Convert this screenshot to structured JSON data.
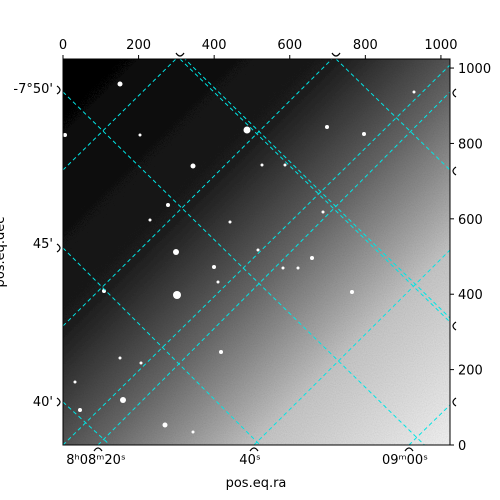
{
  "chart_data": {
    "type": "heatmap",
    "title": "",
    "xlabel": "pos.eq.ra",
    "ylabel": "pos.eq.dec",
    "pixel_axes": {
      "x_range": [
        0,
        1024
      ],
      "y_range": [
        0,
        1024
      ],
      "top_ticks": [
        0,
        200,
        400,
        600,
        800,
        1000
      ],
      "right_ticks": [
        0,
        200,
        400,
        600,
        800,
        1000
      ]
    },
    "world_ticks": {
      "ra": [
        {
          "label": "8ʰ08ᵐ20ˢ",
          "value": "8h08m20s"
        },
        {
          "label": "40ˢ",
          "value": "8h08m40s"
        },
        {
          "label": "09ᵐ00ˢ",
          "value": "8h09m00s"
        }
      ],
      "dec": [
        {
          "label": "-7°50'",
          "value": "-7°50'"
        },
        {
          "label": "45'",
          "value": "-7°45'"
        },
        {
          "label": "40'",
          "value": "-7°40'"
        }
      ]
    },
    "grid": true,
    "grid_color": "#00e5e5",
    "colormap": "gray",
    "image_description_values": {
      "background_dark_corner": "top-left",
      "background_bright_corner": "bottom-right"
    }
  }
}
